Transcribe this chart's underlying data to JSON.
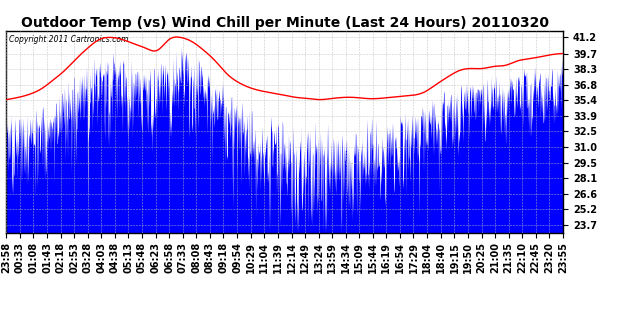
{
  "title": "Outdoor Temp (vs) Wind Chill per Minute (Last 24 Hours) 20110320",
  "copyright_text": "Copyright 2011 Cartronics.com",
  "yticks": [
    23.7,
    25.2,
    26.6,
    28.1,
    29.5,
    31.0,
    32.5,
    33.9,
    35.4,
    36.8,
    38.3,
    39.7,
    41.2
  ],
  "ylim": [
    23.0,
    41.8
  ],
  "background_color": "#ffffff",
  "plot_bg_color": "#ffffff",
  "grid_color": "#bbbbbb",
  "title_fontsize": 10,
  "tick_fontsize": 7,
  "x_tick_labels": [
    "23:58",
    "00:33",
    "01:08",
    "01:43",
    "02:18",
    "02:53",
    "03:28",
    "04:03",
    "04:38",
    "05:13",
    "05:48",
    "06:23",
    "06:58",
    "07:33",
    "08:08",
    "08:43",
    "09:18",
    "09:54",
    "10:29",
    "11:04",
    "11:39",
    "12:14",
    "12:49",
    "13:24",
    "13:59",
    "14:34",
    "15:09",
    "15:44",
    "16:19",
    "16:54",
    "17:29",
    "18:04",
    "18:40",
    "19:15",
    "19:50",
    "20:25",
    "21:00",
    "21:35",
    "22:10",
    "22:45",
    "23:20",
    "23:55"
  ],
  "red_line_keypoints_x": [
    0,
    30,
    60,
    90,
    120,
    150,
    180,
    210,
    240,
    270,
    300,
    330,
    360,
    390,
    420,
    450,
    480,
    510,
    540,
    570,
    600,
    630,
    660,
    690,
    720,
    750,
    780,
    810,
    840,
    870,
    900,
    930,
    960,
    990,
    1020,
    1050,
    1080,
    1110,
    1140,
    1170,
    1200,
    1230,
    1260,
    1290,
    1320,
    1350,
    1380,
    1410,
    1439
  ],
  "red_line_keypoints_y": [
    35.4,
    35.6,
    35.9,
    36.4,
    37.2,
    38.1,
    39.2,
    40.2,
    41.0,
    41.2,
    41.0,
    40.6,
    40.2,
    40.0,
    41.0,
    41.2,
    40.8,
    40.0,
    39.0,
    37.8,
    37.0,
    36.5,
    36.2,
    36.0,
    35.8,
    35.6,
    35.5,
    35.4,
    35.5,
    35.6,
    35.6,
    35.5,
    35.5,
    35.6,
    35.7,
    35.8,
    36.1,
    36.8,
    37.5,
    38.1,
    38.3,
    38.3,
    38.5,
    38.6,
    39.0,
    39.2,
    39.4,
    39.6,
    39.7
  ]
}
